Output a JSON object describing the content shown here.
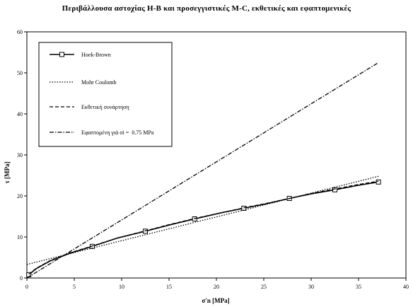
{
  "chart_data": {
    "type": "line",
    "title": "Περιβάλλουσα αστοχίας H-B και προσεγγιστικές M-C, εκθετικές και εφαπτομενικές",
    "xlabel": "σ'n [MPa]",
    "ylabel": "τ [MPa]",
    "xlim": [
      0,
      40
    ],
    "ylim": [
      0,
      60
    ],
    "x_ticks": [
      0,
      5,
      10,
      15,
      20,
      25,
      30,
      35,
      40
    ],
    "y_ticks": [
      0,
      10,
      20,
      30,
      40,
      50,
      60
    ],
    "grid": false,
    "legend_position": "top-left",
    "series": [
      {
        "name": "Hoek-Brown",
        "style": "solid-with-square-markers",
        "x": [
          0.2,
          1.0,
          2.5,
          4.5,
          6.9,
          9.5,
          12.5,
          15.0,
          17.7,
          20.5,
          22.9,
          25.5,
          27.7,
          30.0,
          32.5,
          35.0,
          37.1
        ],
        "y": [
          0.8,
          2.3,
          4.2,
          6.0,
          7.7,
          9.7,
          11.4,
          12.9,
          14.4,
          15.9,
          17.0,
          18.2,
          19.4,
          20.5,
          21.5,
          22.6,
          23.4
        ],
        "markers_x": [
          0.2,
          6.9,
          12.5,
          17.7,
          22.9,
          27.7,
          32.5,
          37.1
        ],
        "markers_y": [
          0.8,
          7.7,
          11.4,
          14.4,
          17.0,
          19.4,
          21.5,
          23.4
        ]
      },
      {
        "name": "Mohr Coulomb",
        "style": "dotted",
        "x": [
          0,
          37.1
        ],
        "y": [
          3.3,
          24.8
        ]
      },
      {
        "name": "Εκθετική συνάρτηση",
        "style": "dashed",
        "x": [
          0.2,
          1.0,
          2.5,
          4.5,
          6.9,
          9.5,
          12.5,
          15.0,
          17.7,
          20.5,
          22.9,
          25.5,
          27.7,
          30.0,
          32.5,
          35.0,
          37.1
        ],
        "y": [
          0.9,
          2.4,
          4.3,
          6.1,
          7.8,
          9.7,
          11.5,
          13.0,
          14.5,
          15.9,
          17.1,
          18.3,
          19.4,
          20.6,
          21.7,
          22.8,
          23.6
        ]
      },
      {
        "name": "Εφαπτομένη γιά σi =  0.75 MPa",
        "style": "dash-dot",
        "x": [
          0,
          37.1
        ],
        "y": [
          0.0,
          52.5
        ]
      }
    ]
  }
}
